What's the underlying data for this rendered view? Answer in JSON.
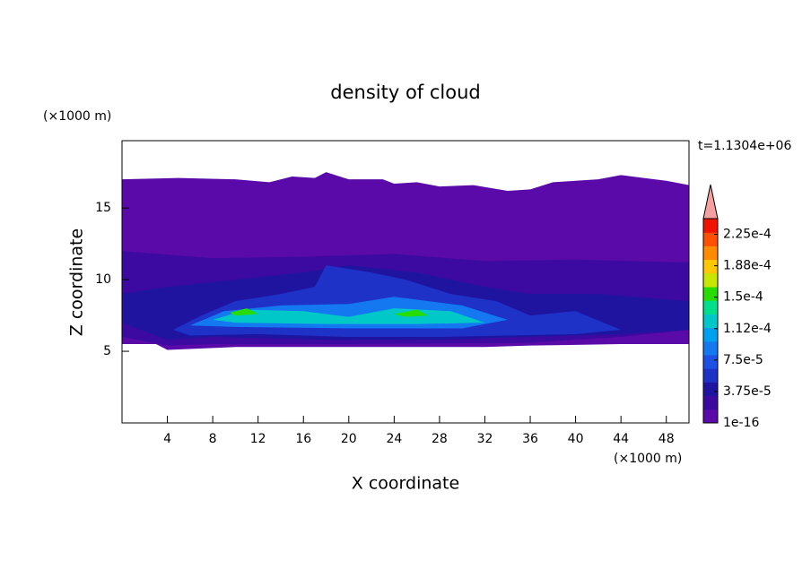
{
  "chart_data": {
    "type": "contour",
    "title": "density of cloud",
    "x_label": "X coordinate",
    "y_label": "Z coordinate",
    "x_unit": "(×1000 m)",
    "y_unit": "(×1000 m)",
    "time_label": "t=1.1304e+06",
    "xlim": [
      0,
      50
    ],
    "ylim": [
      0,
      19.7
    ],
    "xticks": [
      4,
      8,
      12,
      16,
      20,
      24,
      28,
      32,
      36,
      40,
      44,
      48
    ],
    "yticks": [
      5,
      10,
      15
    ],
    "colorbar": {
      "lim": [
        1e-16,
        0.00024375
      ],
      "ticks": [
        1e-16,
        {
          "value": 3.75e-05,
          "label": "3.75e-5"
        },
        {
          "value": 7.5e-05,
          "label": "7.5e-5"
        },
        {
          "value": 0.0001125,
          "label": "1.12e-4"
        },
        {
          "value": 0.00015,
          "label": "1.5e-4"
        },
        {
          "value": 0.0001875,
          "label": "1.88e-4"
        },
        {
          "value": 0.000225,
          "label": "2.25e-4"
        }
      ],
      "colors": [
        "#5a0aa8",
        "#3c0aa0",
        "#1e14a0",
        "#1e32c8",
        "#1e50e6",
        "#1478f0",
        "#00a0f0",
        "#00c8c8",
        "#00e08c",
        "#28dc00",
        "#c8e600",
        "#ffc800",
        "#ff8c00",
        "#ff5000",
        "#f01400"
      ],
      "extend_color": "#f4a0a0"
    }
  }
}
